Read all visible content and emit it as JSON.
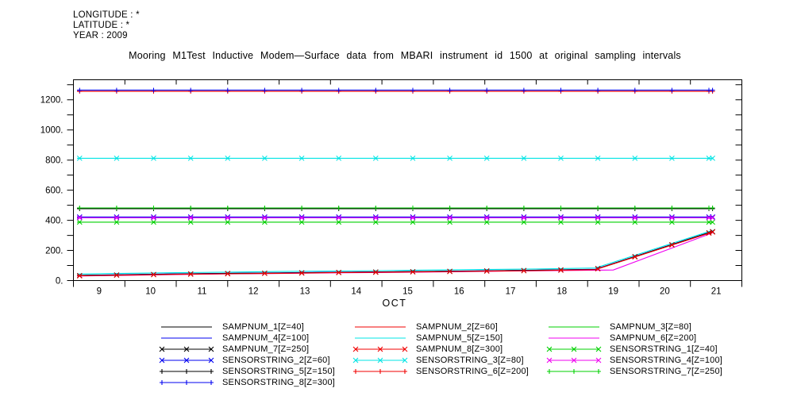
{
  "header": {
    "longitude": "LONGITUDE : *",
    "latitude": "LATITUDE : *",
    "year": "YEAR : 2009"
  },
  "title": "Mooring M1Test Inductive Modem—Surface data from MBARI instrument id 1500 at original sampling intervals",
  "colors": {
    "black": "#000000",
    "red": "#f00000",
    "green": "#00d000",
    "blue": "#0000f0",
    "cyan": "#00e4e4",
    "magenta": "#f000f0"
  },
  "chart_data": {
    "type": "line",
    "title": "Mooring M1Test Inductive Modem—Surface data from MBARI instrument id 1500 at original sampling intervals",
    "xlabel": "OCT",
    "ylabel": "",
    "grid": false,
    "legend_position": "bottom",
    "x_range_days": [
      9,
      22
    ],
    "x_tick_days": [
      9,
      10,
      11,
      12,
      13,
      14,
      15,
      16,
      17,
      18,
      19,
      20,
      21,
      22
    ],
    "x_tick_labels": [
      "9",
      "10",
      "11",
      "12",
      "13",
      "14",
      "15",
      "16",
      "17",
      "18",
      "19",
      "20",
      "21"
    ],
    "ylim": [
      0,
      1333
    ],
    "y_minor_step": 100,
    "y_major_ticks": [
      0,
      200,
      400,
      600,
      800,
      1000,
      1200
    ],
    "y_major_labels": [
      "0.",
      "200.",
      "400.",
      "600.",
      "800.",
      "1000.",
      "1200."
    ],
    "marker_step_days": 0.72,
    "series": [
      {
        "name": "SAMPNUM_1[Z=40]",
        "color": "black",
        "marker": "none",
        "points": [
          [
            9.07,
            33
          ],
          [
            10,
            38
          ],
          [
            11,
            43
          ],
          [
            12,
            47
          ],
          [
            13,
            50
          ],
          [
            14,
            54
          ],
          [
            15,
            57
          ],
          [
            16,
            60
          ],
          [
            17,
            64
          ],
          [
            18,
            68
          ],
          [
            19.15,
            74
          ],
          [
            21.43,
            325
          ]
        ]
      },
      {
        "name": "SAMPNUM_2[Z=60]",
        "color": "red",
        "marker": "none",
        "points": [
          [
            9.07,
            32
          ],
          [
            10,
            37
          ],
          [
            11,
            42
          ],
          [
            12,
            46
          ],
          [
            13,
            49
          ],
          [
            14,
            53
          ],
          [
            15,
            56
          ],
          [
            16,
            59
          ],
          [
            17,
            63
          ],
          [
            18,
            67
          ],
          [
            19.15,
            73
          ],
          [
            21.43,
            323
          ]
        ]
      },
      {
        "name": "SAMPNUM_3[Z=80]",
        "color": "green",
        "marker": "none",
        "points": [
          [
            9.07,
            33
          ],
          [
            10,
            38
          ],
          [
            11,
            43
          ],
          [
            12,
            47
          ],
          [
            13,
            50
          ],
          [
            14,
            54
          ],
          [
            15,
            57
          ],
          [
            16,
            60
          ],
          [
            17,
            64
          ],
          [
            18,
            68
          ],
          [
            19.15,
            74
          ],
          [
            21.43,
            324
          ]
        ]
      },
      {
        "name": "SAMPNUM_4[Z=100]",
        "color": "blue",
        "marker": "none",
        "points": [
          [
            9.07,
            34
          ],
          [
            10,
            39
          ],
          [
            11,
            44
          ],
          [
            12,
            48
          ],
          [
            13,
            51
          ],
          [
            14,
            55
          ],
          [
            15,
            58
          ],
          [
            16,
            61
          ],
          [
            17,
            65
          ],
          [
            18,
            69
          ],
          [
            19.15,
            75
          ],
          [
            21.43,
            326
          ]
        ]
      },
      {
        "name": "SAMPNUM_5[Z=150]",
        "color": "cyan",
        "marker": "none",
        "points": [
          [
            9.07,
            43
          ],
          [
            10,
            48
          ],
          [
            11,
            52
          ],
          [
            12,
            56
          ],
          [
            13,
            60
          ],
          [
            14,
            63
          ],
          [
            15,
            66
          ],
          [
            16,
            70
          ],
          [
            17,
            73
          ],
          [
            18,
            77
          ],
          [
            19.15,
            83
          ],
          [
            21.43,
            333
          ]
        ]
      },
      {
        "name": "SAMPNUM_6[Z=200]",
        "color": "magenta",
        "marker": "none",
        "points": [
          [
            9.07,
            30
          ],
          [
            10,
            35
          ],
          [
            11,
            40
          ],
          [
            12,
            44
          ],
          [
            13,
            47
          ],
          [
            14,
            51
          ],
          [
            15,
            54
          ],
          [
            16,
            57
          ],
          [
            17,
            61
          ],
          [
            18,
            65
          ],
          [
            19.5,
            70
          ],
          [
            21.43,
            317
          ]
        ]
      },
      {
        "name": "SAMPNUM_7[Z=250]",
        "color": "black",
        "marker": "x",
        "points": [
          [
            9.07,
            33
          ],
          [
            10,
            38
          ],
          [
            11,
            43
          ],
          [
            12,
            47
          ],
          [
            13,
            50
          ],
          [
            14,
            54
          ],
          [
            15,
            57
          ],
          [
            16,
            60
          ],
          [
            17,
            64
          ],
          [
            18,
            68
          ],
          [
            19.15,
            74
          ],
          [
            21.43,
            325
          ]
        ]
      },
      {
        "name": "SAMPNUM_8[Z=300]",
        "color": "red",
        "marker": "x",
        "points": [
          [
            9.07,
            31
          ],
          [
            10,
            36
          ],
          [
            11,
            41
          ],
          [
            12,
            45
          ],
          [
            13,
            48
          ],
          [
            14,
            52
          ],
          [
            15,
            55
          ],
          [
            16,
            58
          ],
          [
            17,
            62
          ],
          [
            18,
            66
          ],
          [
            19.15,
            72
          ],
          [
            21.43,
            322
          ]
        ]
      },
      {
        "name": "SENSORSTRING_1[Z=40]",
        "color": "green",
        "marker": "x",
        "points": [
          [
            9.07,
            388
          ],
          [
            21.43,
            388
          ]
        ]
      },
      {
        "name": "SENSORSTRING_2[Z=60]",
        "color": "blue",
        "marker": "x",
        "points": [
          [
            9.07,
            422
          ],
          [
            21.43,
            422
          ]
        ]
      },
      {
        "name": "SENSORSTRING_3[Z=80]",
        "color": "cyan",
        "marker": "x",
        "points": [
          [
            9.07,
            812
          ],
          [
            21.43,
            812
          ]
        ]
      },
      {
        "name": "SENSORSTRING_4[Z=100]",
        "color": "magenta",
        "marker": "x",
        "points": [
          [
            9.07,
            417
          ],
          [
            21.43,
            417
          ]
        ]
      },
      {
        "name": "SENSORSTRING_5[Z=150]",
        "color": "black",
        "marker": "plus",
        "points": [
          [
            9.07,
            477
          ],
          [
            21.43,
            477
          ]
        ]
      },
      {
        "name": "SENSORSTRING_6[Z=200]",
        "color": "red",
        "marker": "plus",
        "points": [
          [
            9.07,
            1256
          ],
          [
            21.43,
            1256
          ]
        ]
      },
      {
        "name": "SENSORSTRING_7[Z=250]",
        "color": "green",
        "marker": "plus",
        "points": [
          [
            9.07,
            482
          ],
          [
            21.43,
            482
          ]
        ]
      },
      {
        "name": "SENSORSTRING_8[Z=300]",
        "color": "blue",
        "marker": "plus",
        "points": [
          [
            9.07,
            1264
          ],
          [
            21.43,
            1264
          ]
        ]
      }
    ],
    "legend_columns": [
      [
        0,
        3,
        6,
        9,
        12,
        15
      ],
      [
        1,
        4,
        7,
        10,
        13
      ],
      [
        2,
        5,
        8,
        11,
        14
      ]
    ]
  }
}
